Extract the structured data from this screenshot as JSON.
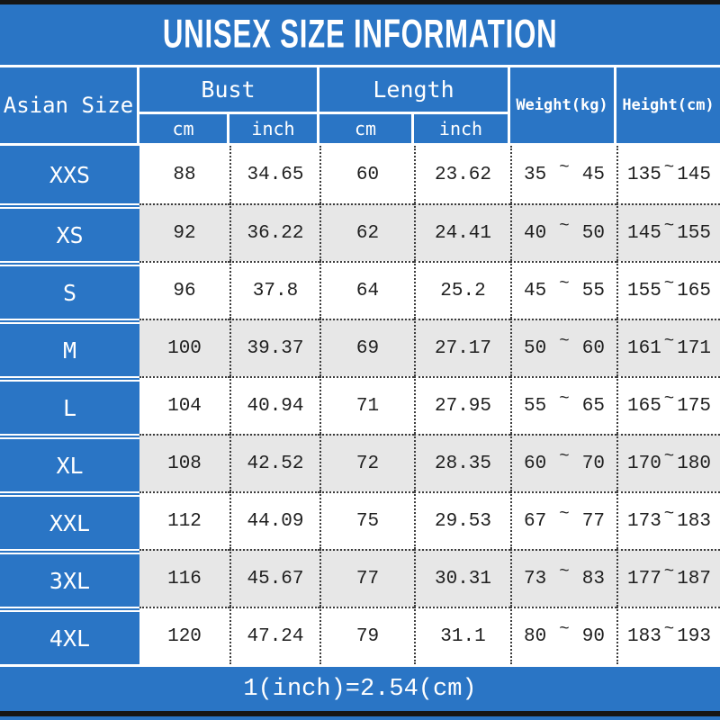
{
  "title": "UNISEX SIZE INFORMATION",
  "header": {
    "size_col": "Asian Size",
    "bust": "Bust",
    "length": "Length",
    "bust_cm": "cm",
    "bust_inch": "inch",
    "length_cm": "cm",
    "length_inch": "inch",
    "weight": "Weight(kg)",
    "height": "Height(cm)"
  },
  "tilde": "~",
  "rows": [
    {
      "size": "XXS",
      "bust_cm": "88",
      "bust_inch": "34.65",
      "length_cm": "60",
      "length_inch": "23.62",
      "weight": [
        "35",
        "45"
      ],
      "height": [
        "135",
        "145"
      ]
    },
    {
      "size": "XS",
      "bust_cm": "92",
      "bust_inch": "36.22",
      "length_cm": "62",
      "length_inch": "24.41",
      "weight": [
        "40",
        "50"
      ],
      "height": [
        "145",
        "155"
      ]
    },
    {
      "size": "S",
      "bust_cm": "96",
      "bust_inch": "37.8",
      "length_cm": "64",
      "length_inch": "25.2",
      "weight": [
        "45",
        "55"
      ],
      "height": [
        "155",
        "165"
      ]
    },
    {
      "size": "M",
      "bust_cm": "100",
      "bust_inch": "39.37",
      "length_cm": "69",
      "length_inch": "27.17",
      "weight": [
        "50",
        "60"
      ],
      "height": [
        "161",
        "171"
      ]
    },
    {
      "size": "L",
      "bust_cm": "104",
      "bust_inch": "40.94",
      "length_cm": "71",
      "length_inch": "27.95",
      "weight": [
        "55",
        "65"
      ],
      "height": [
        "165",
        "175"
      ]
    },
    {
      "size": "XL",
      "bust_cm": "108",
      "bust_inch": "42.52",
      "length_cm": "72",
      "length_inch": "28.35",
      "weight": [
        "60",
        "70"
      ],
      "height": [
        "170",
        "180"
      ]
    },
    {
      "size": "XXL",
      "bust_cm": "112",
      "bust_inch": "44.09",
      "length_cm": "75",
      "length_inch": "29.53",
      "weight": [
        "67",
        "77"
      ],
      "height": [
        "173",
        "183"
      ]
    },
    {
      "size": "3XL",
      "bust_cm": "116",
      "bust_inch": "45.67",
      "length_cm": "77",
      "length_inch": "30.31",
      "weight": [
        "73",
        "83"
      ],
      "height": [
        "177",
        "187"
      ]
    },
    {
      "size": "4XL",
      "bust_cm": "120",
      "bust_inch": "47.24",
      "length_cm": "79",
      "length_inch": "31.1",
      "weight": [
        "80",
        "90"
      ],
      "height": [
        "183",
        "193"
      ]
    }
  ],
  "footer": "1(inch)=2.54(cm)",
  "colors": {
    "blue": "#2A75C5",
    "row_alt_gray": "#E7E7E7",
    "border_black": "#161616",
    "dotted_line": "#3C3C3C",
    "text_dark": "#1F1F1F",
    "text_white": "#FFFFFF"
  }
}
